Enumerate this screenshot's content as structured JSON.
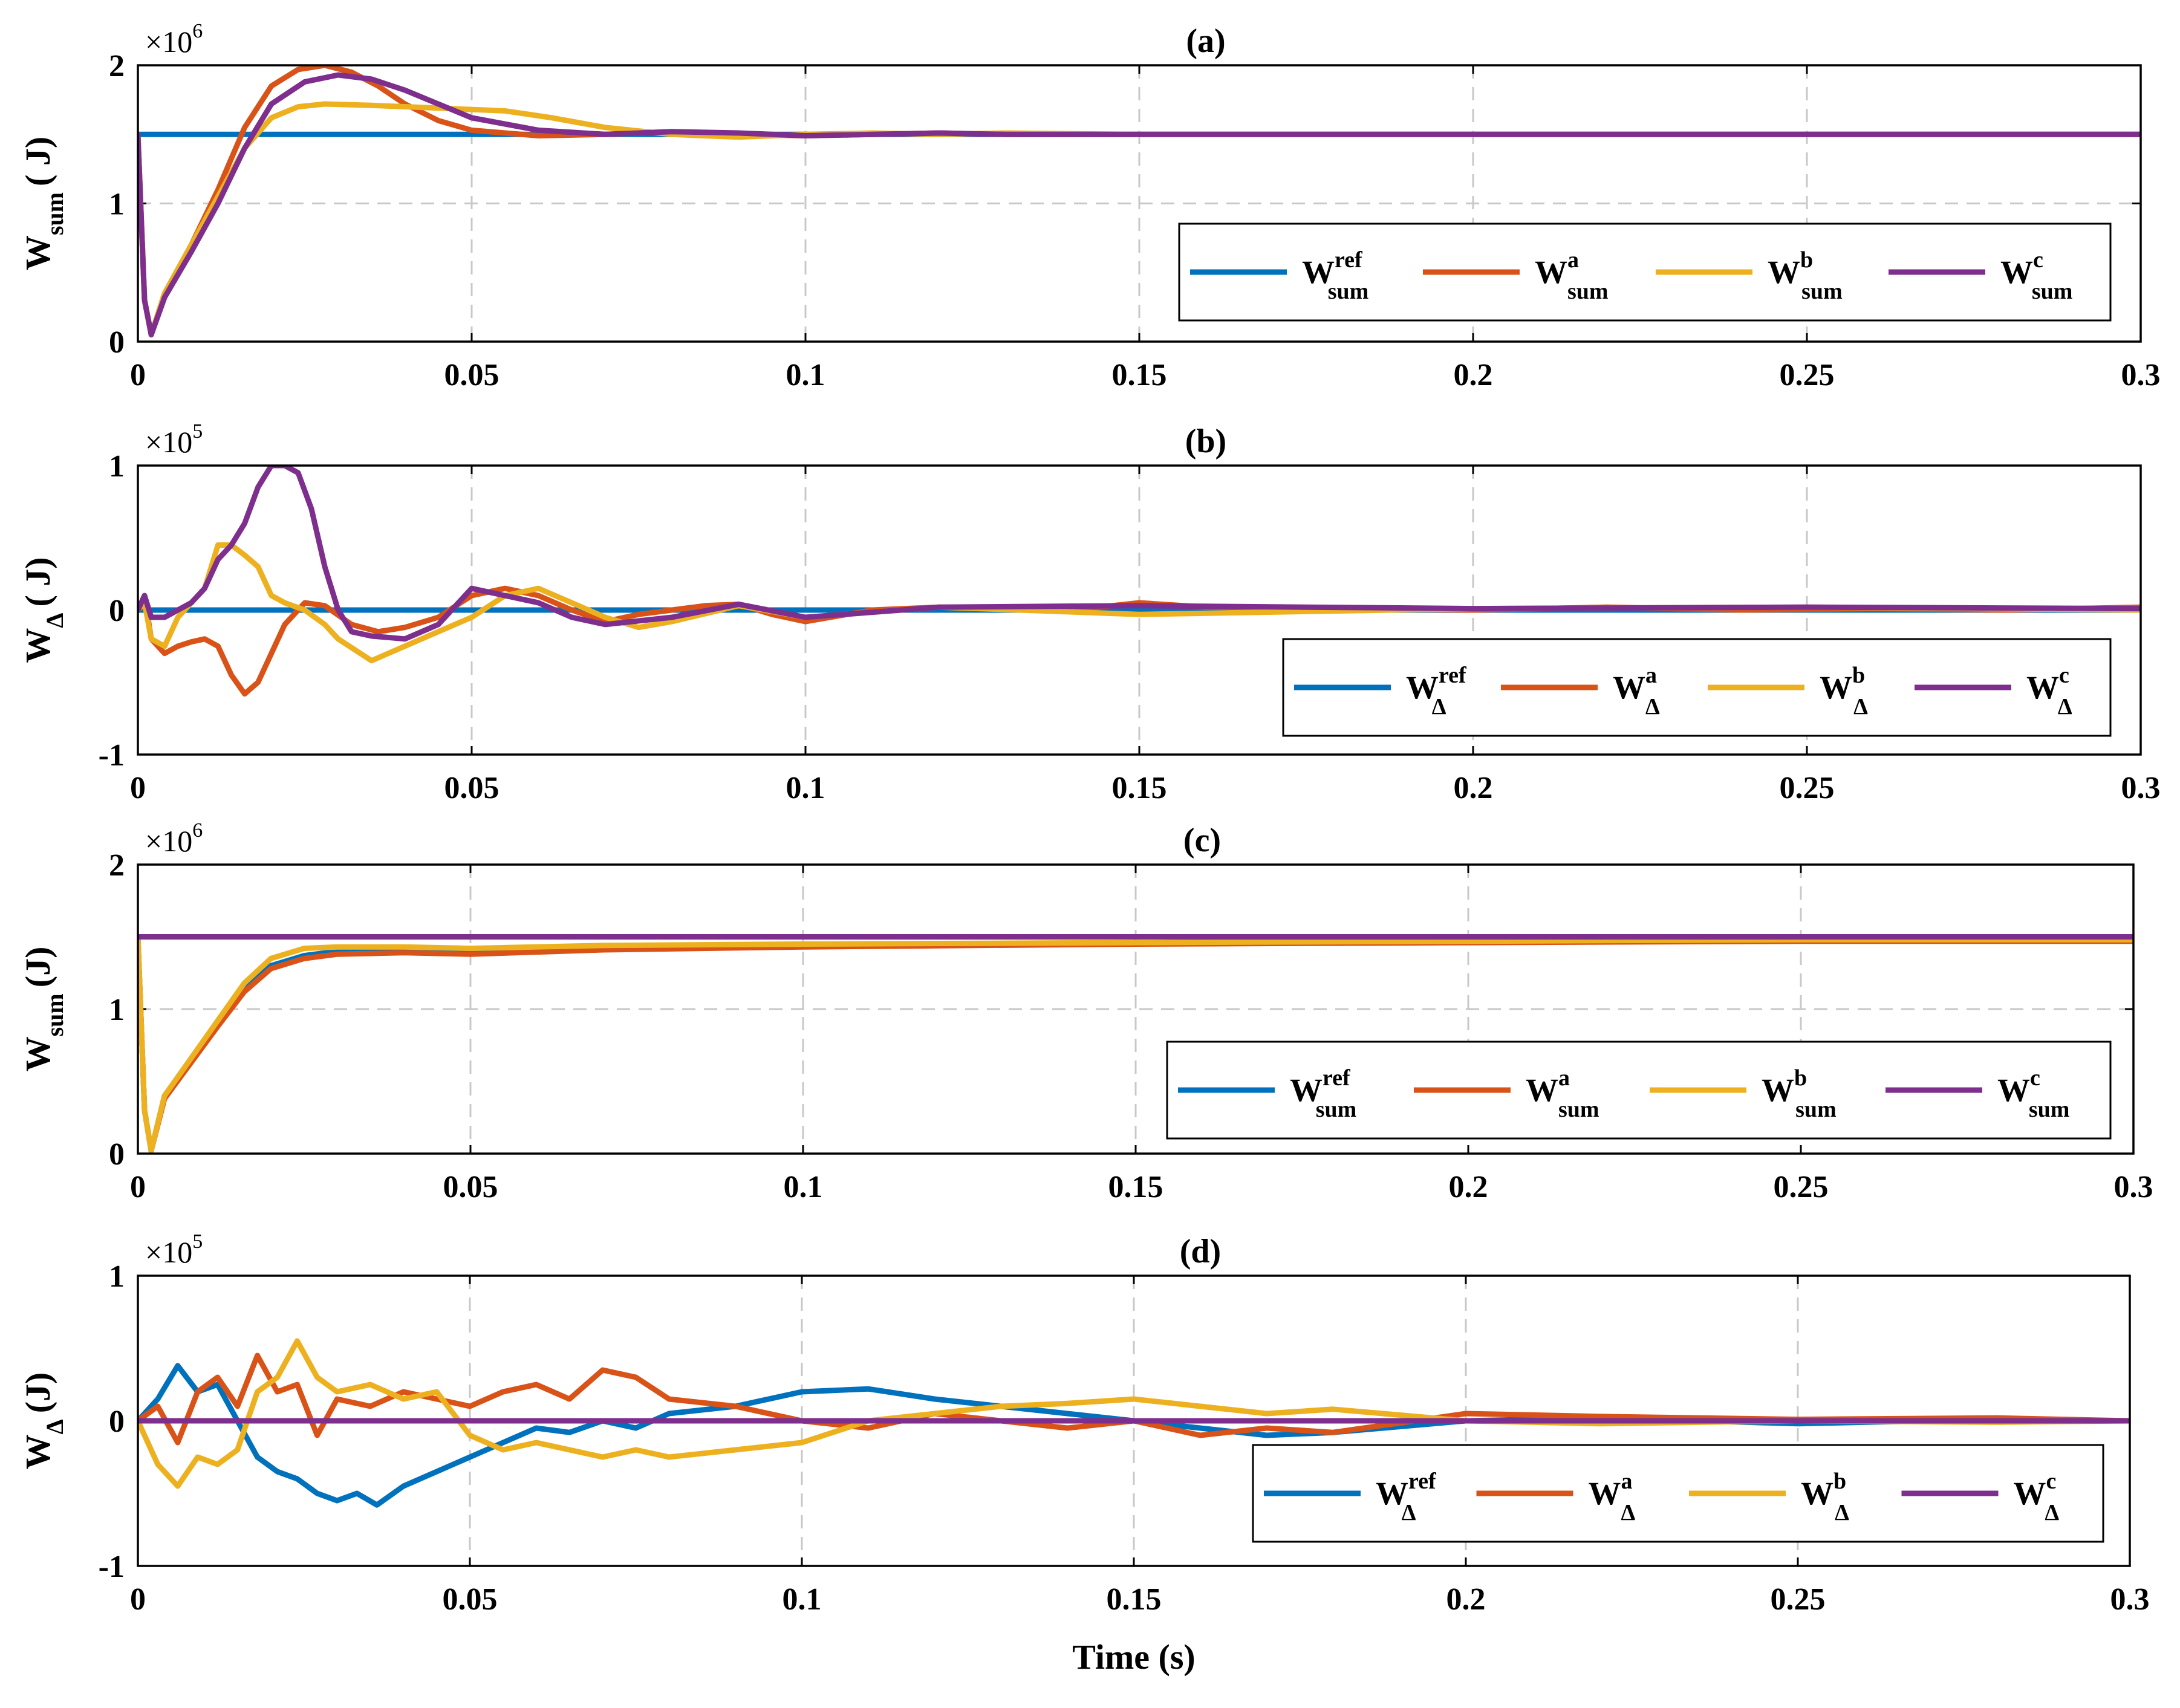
{
  "chart_data": [
    {
      "type": "line",
      "panel": "(a)",
      "title": "(a)",
      "ylabel": {
        "main": "W",
        "sub": "sum",
        "unit": "( J)"
      },
      "multiplier": {
        "base": "×10",
        "exp": "6"
      },
      "xlim": [
        0,
        0.3
      ],
      "ylim": [
        0,
        2
      ],
      "xticks": [
        "0",
        "0.05",
        "0.1",
        "0.15",
        "0.2",
        "0.25",
        "0.3"
      ],
      "yticks": [
        "0",
        "1",
        "2"
      ],
      "legend_position": "bottom-right",
      "series": [
        {
          "name": "W_sum^ref",
          "label_sup": "ref",
          "label_sub": "sum",
          "color": "#0072BD",
          "x": [
            0,
            0.3
          ],
          "y": [
            1.5,
            1.5
          ]
        },
        {
          "name": "W_sum^a",
          "label_sup": "a",
          "label_sub": "sum",
          "color": "#D95319",
          "x": [
            0,
            0.001,
            0.002,
            0.004,
            0.008,
            0.012,
            0.016,
            0.02,
            0.024,
            0.028,
            0.032,
            0.036,
            0.04,
            0.045,
            0.05,
            0.06,
            0.07,
            0.08,
            0.09,
            0.1,
            0.11,
            0.12,
            0.13,
            0.15,
            0.2,
            0.25,
            0.3
          ],
          "y": [
            1.5,
            0.3,
            0.05,
            0.35,
            0.7,
            1.1,
            1.55,
            1.85,
            1.97,
            2.0,
            1.95,
            1.85,
            1.72,
            1.6,
            1.53,
            1.49,
            1.5,
            1.52,
            1.5,
            1.49,
            1.5,
            1.51,
            1.5,
            1.5,
            1.5,
            1.5,
            1.5
          ]
        },
        {
          "name": "W_sum^b",
          "label_sup": "b",
          "label_sub": "sum",
          "color": "#EDB120",
          "x": [
            0,
            0.001,
            0.002,
            0.004,
            0.008,
            0.012,
            0.016,
            0.02,
            0.024,
            0.028,
            0.035,
            0.045,
            0.055,
            0.062,
            0.07,
            0.08,
            0.09,
            0.1,
            0.11,
            0.12,
            0.13,
            0.15,
            0.2,
            0.25,
            0.3
          ],
          "y": [
            1.5,
            0.3,
            0.05,
            0.35,
            0.7,
            1.05,
            1.4,
            1.62,
            1.7,
            1.72,
            1.71,
            1.69,
            1.67,
            1.62,
            1.55,
            1.5,
            1.48,
            1.5,
            1.51,
            1.5,
            1.51,
            1.5,
            1.5,
            1.5,
            1.5
          ]
        },
        {
          "name": "W_sum^c",
          "label_sup": "c",
          "label_sub": "sum",
          "color": "#7E2F8E",
          "x": [
            0,
            0.001,
            0.002,
            0.004,
            0.008,
            0.012,
            0.016,
            0.02,
            0.025,
            0.03,
            0.035,
            0.04,
            0.045,
            0.05,
            0.06,
            0.07,
            0.08,
            0.09,
            0.1,
            0.11,
            0.12,
            0.13,
            0.15,
            0.2,
            0.25,
            0.3
          ],
          "y": [
            1.5,
            0.3,
            0.05,
            0.32,
            0.65,
            1.0,
            1.4,
            1.72,
            1.88,
            1.93,
            1.9,
            1.82,
            1.72,
            1.62,
            1.53,
            1.5,
            1.52,
            1.51,
            1.49,
            1.5,
            1.51,
            1.5,
            1.5,
            1.5,
            1.5,
            1.5
          ]
        }
      ]
    },
    {
      "type": "line",
      "panel": "(b)",
      "title": "(b)",
      "ylabel": {
        "main": "W",
        "sub": "Δ",
        "unit": "( J)"
      },
      "multiplier": {
        "base": "×10",
        "exp": "5"
      },
      "xlim": [
        0,
        0.3
      ],
      "ylim": [
        -1,
        1
      ],
      "xticks": [
        "0",
        "0.05",
        "0.1",
        "0.15",
        "0.2",
        "0.25",
        "0.3"
      ],
      "yticks": [
        "-1",
        "0",
        "1"
      ],
      "legend_position": "bottom-right",
      "series": [
        {
          "name": "W_Δ^ref",
          "label_sup": "ref",
          "label_sub": "Δ",
          "color": "#0072BD",
          "x": [
            0,
            0.3
          ],
          "y": [
            0,
            0
          ]
        },
        {
          "name": "W_Δ^a",
          "label_sup": "a",
          "label_sub": "Δ",
          "color": "#D95319",
          "x": [
            0,
            0.001,
            0.002,
            0.004,
            0.006,
            0.008,
            0.01,
            0.012,
            0.014,
            0.016,
            0.018,
            0.02,
            0.022,
            0.025,
            0.028,
            0.032,
            0.036,
            0.04,
            0.045,
            0.05,
            0.055,
            0.06,
            0.065,
            0.07,
            0.075,
            0.08,
            0.085,
            0.09,
            0.095,
            0.1,
            0.11,
            0.12,
            0.13,
            0.14,
            0.15,
            0.16,
            0.18,
            0.2,
            0.22,
            0.24,
            0.26,
            0.28,
            0.3
          ],
          "y": [
            0,
            0.1,
            -0.2,
            -0.3,
            -0.25,
            -0.22,
            -0.2,
            -0.25,
            -0.45,
            -0.58,
            -0.5,
            -0.3,
            -0.1,
            0.05,
            0.03,
            -0.1,
            -0.15,
            -0.12,
            -0.05,
            0.1,
            0.15,
            0.1,
            0.0,
            -0.08,
            -0.03,
            0.0,
            0.03,
            0.04,
            -0.03,
            -0.08,
            0.0,
            0.02,
            0.01,
            0.0,
            0.05,
            0.02,
            0.01,
            0.0,
            0.02,
            0.0,
            0.01,
            0.0,
            0.02
          ]
        },
        {
          "name": "W_Δ^b",
          "label_sup": "b",
          "label_sub": "Δ",
          "color": "#EDB120",
          "x": [
            0,
            0.001,
            0.002,
            0.004,
            0.006,
            0.008,
            0.01,
            0.012,
            0.014,
            0.016,
            0.018,
            0.02,
            0.022,
            0.025,
            0.028,
            0.03,
            0.035,
            0.04,
            0.045,
            0.05,
            0.055,
            0.06,
            0.065,
            0.07,
            0.075,
            0.08,
            0.09,
            0.1,
            0.12,
            0.15,
            0.2,
            0.25,
            0.3
          ],
          "y": [
            0,
            0.05,
            -0.2,
            -0.25,
            -0.05,
            0.05,
            0.15,
            0.45,
            0.45,
            0.38,
            0.3,
            0.1,
            0.05,
            0.0,
            -0.1,
            -0.2,
            -0.35,
            -0.25,
            -0.15,
            -0.05,
            0.1,
            0.15,
            0.05,
            -0.05,
            -0.12,
            -0.08,
            0.03,
            -0.05,
            0.02,
            -0.03,
            0.01,
            0.02,
            0.0
          ]
        },
        {
          "name": "W_Δ^c",
          "label_sup": "c",
          "label_sub": "Δ",
          "color": "#7E2F8E",
          "x": [
            0,
            0.001,
            0.002,
            0.004,
            0.006,
            0.008,
            0.01,
            0.012,
            0.014,
            0.016,
            0.018,
            0.02,
            0.022,
            0.024,
            0.026,
            0.028,
            0.03,
            0.032,
            0.035,
            0.04,
            0.045,
            0.05,
            0.055,
            0.06,
            0.065,
            0.07,
            0.08,
            0.09,
            0.1,
            0.12,
            0.15,
            0.2,
            0.25,
            0.3
          ],
          "y": [
            0,
            0.1,
            -0.05,
            -0.05,
            0.0,
            0.05,
            0.15,
            0.35,
            0.45,
            0.6,
            0.85,
            1.0,
            1.0,
            0.95,
            0.7,
            0.3,
            0.0,
            -0.15,
            -0.18,
            -0.2,
            -0.1,
            0.15,
            0.1,
            0.05,
            -0.05,
            -0.1,
            -0.05,
            0.04,
            -0.05,
            0.02,
            0.03,
            0.01,
            0.02,
            0.01
          ]
        }
      ]
    },
    {
      "type": "line",
      "panel": "(c)",
      "title": "(c)",
      "ylabel": {
        "main": "W",
        "sub": "sum",
        "unit": "(J)"
      },
      "multiplier": {
        "base": "×10",
        "exp": "6"
      },
      "xlim": [
        0,
        0.3
      ],
      "ylim": [
        0,
        2
      ],
      "xticks": [
        "0",
        "0.05",
        "0.1",
        "0.15",
        "0.2",
        "0.25",
        "0.3"
      ],
      "yticks": [
        "0",
        "1",
        "2"
      ],
      "legend_position": "bottom-right",
      "series": [
        {
          "name": "W_sum^ref",
          "label_sup": "ref",
          "label_sub": "sum",
          "color": "#0072BD",
          "x": [
            0,
            0.001,
            0.002,
            0.004,
            0.008,
            0.012,
            0.016,
            0.02,
            0.025,
            0.03,
            0.04,
            0.05,
            0.07,
            0.1,
            0.15,
            0.2,
            0.25,
            0.3
          ],
          "y": [
            1.5,
            0.3,
            0.02,
            0.4,
            0.65,
            0.9,
            1.15,
            1.3,
            1.37,
            1.4,
            1.42,
            1.4,
            1.43,
            1.44,
            1.46,
            1.47,
            1.48,
            1.48
          ]
        },
        {
          "name": "W_sum^a",
          "label_sup": "a",
          "label_sub": "sum",
          "color": "#D95319",
          "x": [
            0,
            0.001,
            0.002,
            0.004,
            0.008,
            0.012,
            0.016,
            0.02,
            0.025,
            0.03,
            0.04,
            0.05,
            0.07,
            0.1,
            0.15,
            0.2,
            0.25,
            0.3
          ],
          "y": [
            1.5,
            0.3,
            0.02,
            0.38,
            0.63,
            0.88,
            1.12,
            1.28,
            1.35,
            1.38,
            1.39,
            1.38,
            1.41,
            1.43,
            1.45,
            1.46,
            1.47,
            1.47
          ]
        },
        {
          "name": "W_sum^b",
          "label_sup": "b",
          "label_sub": "sum",
          "color": "#EDB120",
          "x": [
            0,
            0.001,
            0.002,
            0.004,
            0.008,
            0.012,
            0.016,
            0.02,
            0.025,
            0.03,
            0.04,
            0.05,
            0.07,
            0.1,
            0.15,
            0.2,
            0.25,
            0.3
          ],
          "y": [
            1.5,
            0.3,
            0.02,
            0.4,
            0.66,
            0.92,
            1.18,
            1.35,
            1.42,
            1.43,
            1.43,
            1.42,
            1.44,
            1.45,
            1.46,
            1.47,
            1.48,
            1.48
          ]
        },
        {
          "name": "W_sum^c",
          "label_sup": "c",
          "label_sub": "sum",
          "color": "#7E2F8E",
          "x": [
            0,
            0.3
          ],
          "y": [
            1.5,
            1.5
          ]
        }
      ]
    },
    {
      "type": "line",
      "panel": "(d)",
      "title": "(d)",
      "ylabel": {
        "main": "W",
        "sub": "Δ",
        "unit": "(J)"
      },
      "multiplier": {
        "base": "×10",
        "exp": "5"
      },
      "xlim": [
        0,
        0.3
      ],
      "ylim": [
        -1,
        1
      ],
      "xlabel": "Time (s)",
      "xticks": [
        "0",
        "0.05",
        "0.1",
        "0.15",
        "0.2",
        "0.25",
        "0.3"
      ],
      "yticks": [
        "-1",
        "0",
        "1"
      ],
      "legend_position": "bottom-right",
      "series": [
        {
          "name": "W_Δ^ref",
          "label_sup": "ref",
          "label_sub": "Δ",
          "color": "#0072BD",
          "x": [
            0,
            0.003,
            0.006,
            0.009,
            0.012,
            0.015,
            0.018,
            0.021,
            0.024,
            0.027,
            0.03,
            0.033,
            0.036,
            0.04,
            0.045,
            0.05,
            0.055,
            0.06,
            0.065,
            0.07,
            0.075,
            0.08,
            0.09,
            0.1,
            0.11,
            0.12,
            0.13,
            0.14,
            0.15,
            0.16,
            0.17,
            0.18,
            0.2,
            0.22,
            0.25,
            0.28,
            0.3
          ],
          "y": [
            0,
            0.15,
            0.38,
            0.2,
            0.25,
            0.0,
            -0.25,
            -0.35,
            -0.4,
            -0.5,
            -0.55,
            -0.5,
            -0.58,
            -0.45,
            -0.35,
            -0.25,
            -0.15,
            -0.05,
            -0.08,
            0.0,
            -0.05,
            0.05,
            0.1,
            0.2,
            0.22,
            0.15,
            0.1,
            0.05,
            0.0,
            -0.05,
            -0.1,
            -0.08,
            0.0,
            0.02,
            -0.02,
            0.01,
            0.0
          ]
        },
        {
          "name": "W_Δ^a",
          "label_sup": "a",
          "label_sub": "Δ",
          "color": "#D95319",
          "x": [
            0,
            0.003,
            0.006,
            0.009,
            0.012,
            0.015,
            0.018,
            0.021,
            0.024,
            0.027,
            0.03,
            0.035,
            0.04,
            0.045,
            0.05,
            0.055,
            0.06,
            0.065,
            0.07,
            0.075,
            0.08,
            0.09,
            0.1,
            0.11,
            0.12,
            0.13,
            0.14,
            0.15,
            0.16,
            0.17,
            0.18,
            0.2,
            0.22,
            0.25,
            0.28,
            0.3
          ],
          "y": [
            0,
            0.1,
            -0.15,
            0.2,
            0.3,
            0.1,
            0.45,
            0.2,
            0.25,
            -0.1,
            0.15,
            0.1,
            0.2,
            0.15,
            0.1,
            0.2,
            0.25,
            0.15,
            0.35,
            0.3,
            0.15,
            0.1,
            0.0,
            -0.05,
            0.05,
            0.0,
            -0.05,
            0.0,
            -0.1,
            -0.05,
            -0.08,
            0.05,
            0.03,
            0.01,
            0.02,
            0.0
          ]
        },
        {
          "name": "W_Δ^b",
          "label_sup": "b",
          "label_sub": "Δ",
          "color": "#EDB120",
          "x": [
            0,
            0.003,
            0.006,
            0.009,
            0.012,
            0.015,
            0.018,
            0.021,
            0.024,
            0.027,
            0.03,
            0.035,
            0.04,
            0.045,
            0.05,
            0.055,
            0.06,
            0.065,
            0.07,
            0.075,
            0.08,
            0.09,
            0.1,
            0.11,
            0.12,
            0.13,
            0.14,
            0.15,
            0.16,
            0.17,
            0.18,
            0.2,
            0.22,
            0.25,
            0.28,
            0.3
          ],
          "y": [
            0,
            -0.3,
            -0.45,
            -0.25,
            -0.3,
            -0.2,
            0.2,
            0.3,
            0.55,
            0.3,
            0.2,
            0.25,
            0.15,
            0.2,
            -0.1,
            -0.2,
            -0.15,
            -0.2,
            -0.25,
            -0.2,
            -0.25,
            -0.2,
            -0.15,
            0.0,
            0.05,
            0.1,
            0.12,
            0.15,
            0.1,
            0.05,
            0.08,
            0.0,
            -0.02,
            0.0,
            -0.01,
            0.0
          ]
        },
        {
          "name": "W_Δ^c",
          "label_sup": "c",
          "label_sub": "Δ",
          "color": "#7E2F8E",
          "x": [
            0,
            0.3
          ],
          "y": [
            0,
            0
          ]
        }
      ]
    }
  ]
}
